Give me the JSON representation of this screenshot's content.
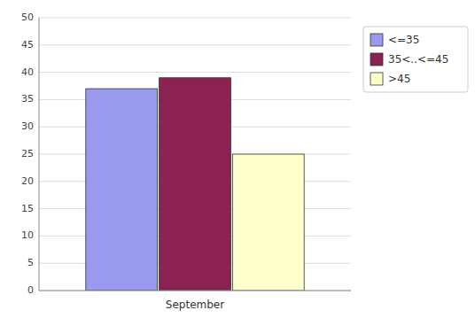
{
  "chart_data": {
    "type": "bar",
    "categories": [
      "September"
    ],
    "series": [
      {
        "name": "<=35",
        "color": "#9999EE",
        "values": [
          37
        ]
      },
      {
        "name": "35<..<=45",
        "color": "#8B2252",
        "values": [
          39
        ]
      },
      {
        "name": ">45",
        "color": "#FFFFCC",
        "values": [
          25
        ]
      }
    ],
    "ylim": [
      0,
      50
    ],
    "yticks": [
      0,
      5,
      10,
      15,
      20,
      25,
      30,
      35,
      40,
      45,
      50
    ],
    "grid": true,
    "legend": "right"
  }
}
